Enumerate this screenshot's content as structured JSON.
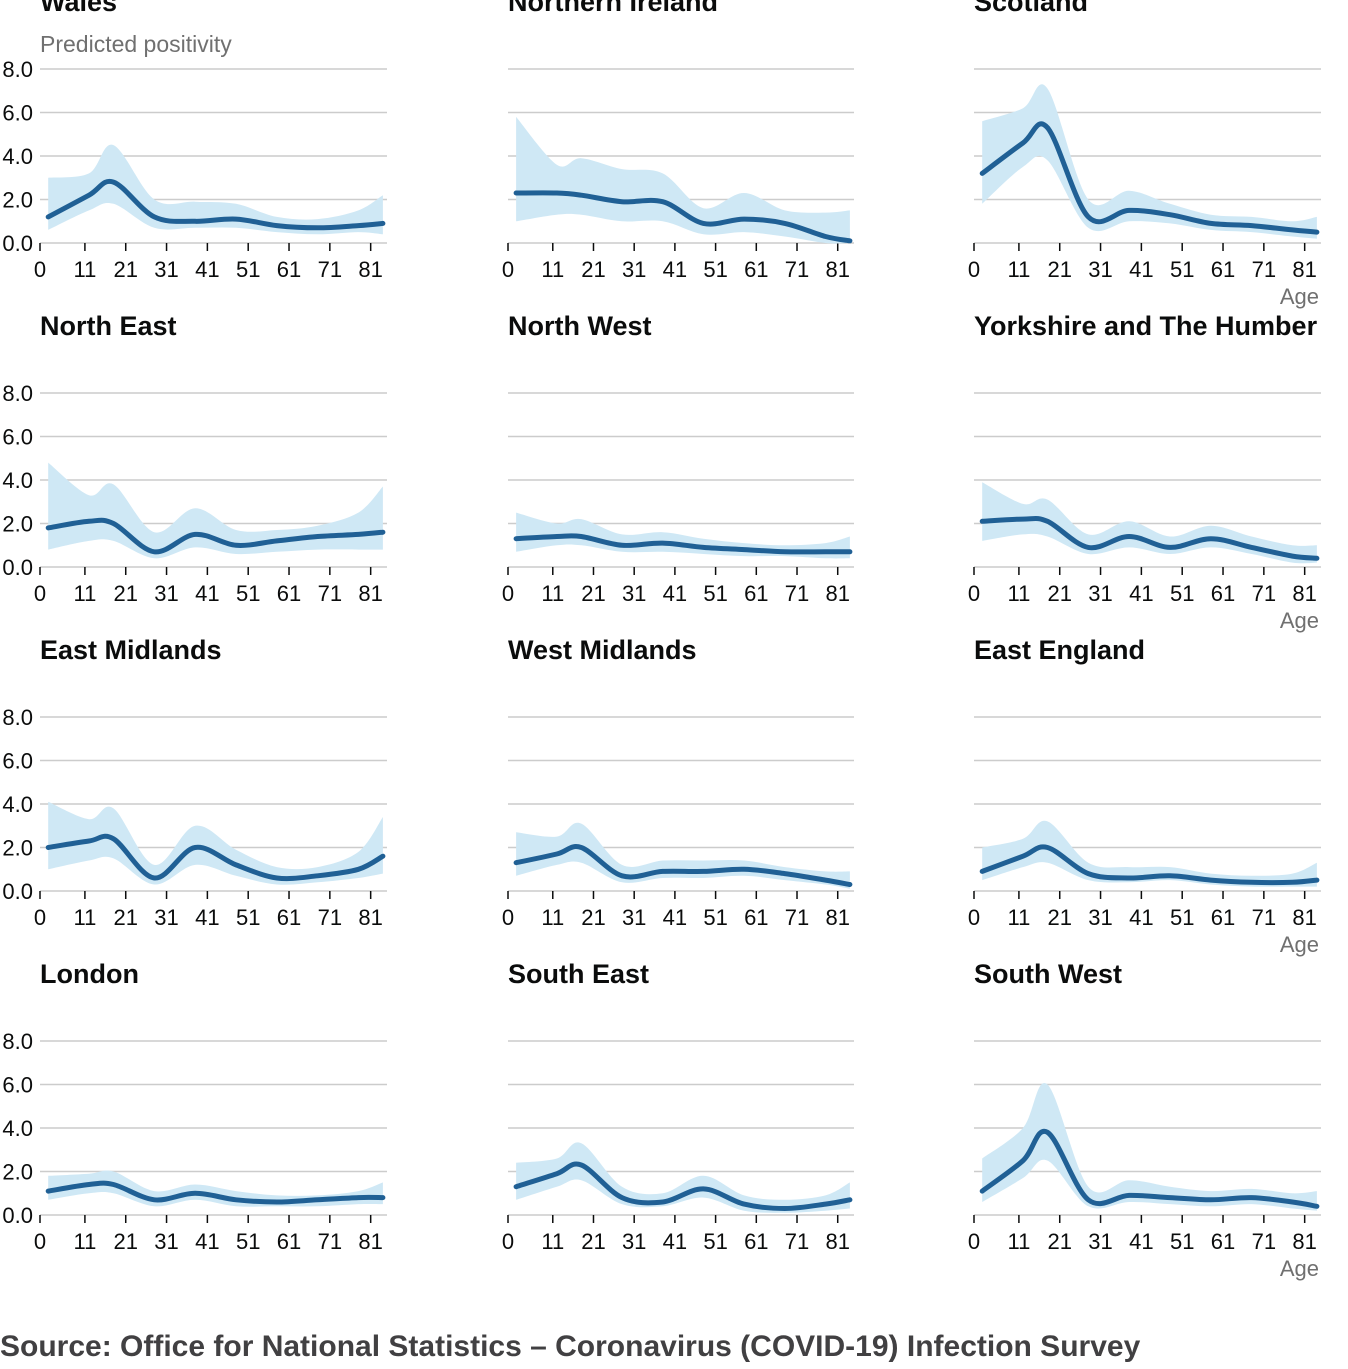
{
  "chart_data": {
    "type": "area",
    "layout": "small-multiples 4x3",
    "ylabel": "Predicted positivity",
    "xlabel": "Age",
    "ylim": [
      0,
      8
    ],
    "xlim": [
      0,
      85
    ],
    "y_ticks": [
      "0.0",
      "2.0",
      "4.0",
      "6.0",
      "8.0"
    ],
    "x_ticks": [
      "0",
      "11",
      "21",
      "31",
      "41",
      "51",
      "61",
      "71",
      "81"
    ],
    "grid": true,
    "colors": {
      "line": "#206095",
      "band": "#cfe8f5",
      "grid": "#cccccc"
    },
    "x": [
      2,
      12,
      18,
      28,
      38,
      48,
      58,
      68,
      78,
      84
    ],
    "panels": [
      {
        "name": "Wales",
        "values": [
          1.2,
          2.2,
          2.8,
          1.2,
          1.0,
          1.1,
          0.8,
          0.7,
          0.8,
          0.9
        ],
        "lower": [
          0.6,
          1.5,
          1.8,
          0.7,
          0.7,
          0.7,
          0.5,
          0.4,
          0.5,
          0.4
        ],
        "upper": [
          3.0,
          3.2,
          4.5,
          2.0,
          1.9,
          1.8,
          1.2,
          1.1,
          1.5,
          2.2
        ]
      },
      {
        "name": "Northern Ireland",
        "values": [
          2.3,
          2.3,
          2.2,
          1.9,
          1.9,
          0.9,
          1.1,
          0.9,
          0.3,
          0.1
        ],
        "lower": [
          1.0,
          1.3,
          1.3,
          1.0,
          1.0,
          0.4,
          0.5,
          0.3,
          0.0,
          0.0
        ],
        "upper": [
          5.8,
          3.6,
          3.9,
          3.4,
          3.2,
          1.6,
          2.3,
          1.5,
          1.4,
          1.5
        ]
      },
      {
        "name": "Scotland",
        "values": [
          3.2,
          4.6,
          5.3,
          1.2,
          1.5,
          1.3,
          0.9,
          0.8,
          0.6,
          0.5
        ],
        "lower": [
          1.8,
          3.5,
          3.8,
          0.7,
          1.0,
          0.9,
          0.6,
          0.5,
          0.3,
          0.2
        ],
        "upper": [
          5.6,
          6.2,
          7.1,
          2.0,
          2.4,
          1.8,
          1.3,
          1.2,
          1.0,
          1.2
        ]
      },
      {
        "name": "North East",
        "values": [
          1.8,
          2.1,
          2.0,
          0.7,
          1.5,
          1.0,
          1.2,
          1.4,
          1.5,
          1.6
        ],
        "lower": [
          0.8,
          1.2,
          1.2,
          0.4,
          0.9,
          0.6,
          0.7,
          0.8,
          0.8,
          0.8
        ],
        "upper": [
          4.8,
          3.3,
          3.8,
          1.6,
          2.7,
          1.7,
          1.7,
          1.9,
          2.5,
          3.7
        ]
      },
      {
        "name": "North West",
        "values": [
          1.3,
          1.4,
          1.4,
          1.0,
          1.1,
          0.9,
          0.8,
          0.7,
          0.7,
          0.7
        ],
        "lower": [
          0.7,
          1.0,
          1.0,
          0.7,
          0.7,
          0.6,
          0.5,
          0.5,
          0.4,
          0.4
        ],
        "upper": [
          2.5,
          2.0,
          2.2,
          1.5,
          1.6,
          1.3,
          1.1,
          1.0,
          1.1,
          1.4
        ]
      },
      {
        "name": "Yorkshire and The Humber",
        "values": [
          2.1,
          2.2,
          2.1,
          0.9,
          1.4,
          0.9,
          1.3,
          0.9,
          0.5,
          0.4
        ],
        "lower": [
          1.2,
          1.5,
          1.4,
          0.6,
          0.9,
          0.6,
          0.9,
          0.6,
          0.2,
          0.2
        ],
        "upper": [
          3.9,
          2.9,
          3.1,
          1.5,
          2.1,
          1.4,
          1.9,
          1.4,
          1.0,
          1.0
        ]
      },
      {
        "name": "East Midlands",
        "values": [
          2.0,
          2.3,
          2.4,
          0.6,
          2.0,
          1.2,
          0.6,
          0.7,
          1.0,
          1.6
        ],
        "lower": [
          1.0,
          1.4,
          1.5,
          0.3,
          1.2,
          0.7,
          0.3,
          0.4,
          0.6,
          0.8
        ],
        "upper": [
          4.1,
          3.3,
          3.8,
          1.2,
          3.0,
          1.9,
          1.1,
          1.1,
          1.8,
          3.4
        ]
      },
      {
        "name": "West Midlands",
        "values": [
          1.3,
          1.7,
          2.0,
          0.7,
          0.9,
          0.9,
          1.0,
          0.8,
          0.5,
          0.3
        ],
        "lower": [
          0.7,
          1.2,
          1.3,
          0.4,
          0.6,
          0.6,
          0.7,
          0.5,
          0.3,
          0.1
        ],
        "upper": [
          2.7,
          2.5,
          3.1,
          1.2,
          1.4,
          1.4,
          1.4,
          1.1,
          0.9,
          0.9
        ]
      },
      {
        "name": "East England",
        "values": [
          0.9,
          1.6,
          2.0,
          0.8,
          0.6,
          0.7,
          0.5,
          0.4,
          0.4,
          0.5
        ],
        "lower": [
          0.5,
          1.1,
          1.3,
          0.5,
          0.4,
          0.5,
          0.3,
          0.2,
          0.2,
          0.2
        ],
        "upper": [
          2.0,
          2.4,
          3.2,
          1.3,
          1.1,
          1.1,
          0.8,
          0.7,
          0.8,
          1.3
        ]
      },
      {
        "name": "London",
        "values": [
          1.1,
          1.4,
          1.4,
          0.7,
          1.0,
          0.7,
          0.6,
          0.7,
          0.8,
          0.8
        ],
        "lower": [
          0.7,
          1.0,
          1.0,
          0.4,
          0.7,
          0.4,
          0.4,
          0.4,
          0.5,
          0.5
        ],
        "upper": [
          1.8,
          1.9,
          2.0,
          1.1,
          1.4,
          1.1,
          0.9,
          0.9,
          1.1,
          1.5
        ]
      },
      {
        "name": "South East",
        "values": [
          1.3,
          1.9,
          2.3,
          0.8,
          0.6,
          1.2,
          0.5,
          0.3,
          0.5,
          0.7
        ],
        "lower": [
          0.7,
          1.3,
          1.6,
          0.5,
          0.4,
          0.8,
          0.2,
          0.1,
          0.2,
          0.3
        ],
        "upper": [
          2.4,
          2.6,
          3.3,
          1.3,
          1.0,
          1.8,
          0.9,
          0.7,
          0.9,
          1.5
        ]
      },
      {
        "name": "South West",
        "values": [
          1.1,
          2.5,
          3.8,
          0.7,
          0.9,
          0.8,
          0.7,
          0.8,
          0.6,
          0.4
        ],
        "lower": [
          0.6,
          1.7,
          2.5,
          0.4,
          0.6,
          0.5,
          0.4,
          0.5,
          0.3,
          0.2
        ],
        "upper": [
          2.6,
          4.0,
          6.0,
          1.3,
          1.6,
          1.3,
          1.1,
          1.2,
          1.0,
          1.1
        ]
      }
    ]
  },
  "source": "Source: Office for National Statistics – Coronavirus (COVID-19) Infection Survey"
}
